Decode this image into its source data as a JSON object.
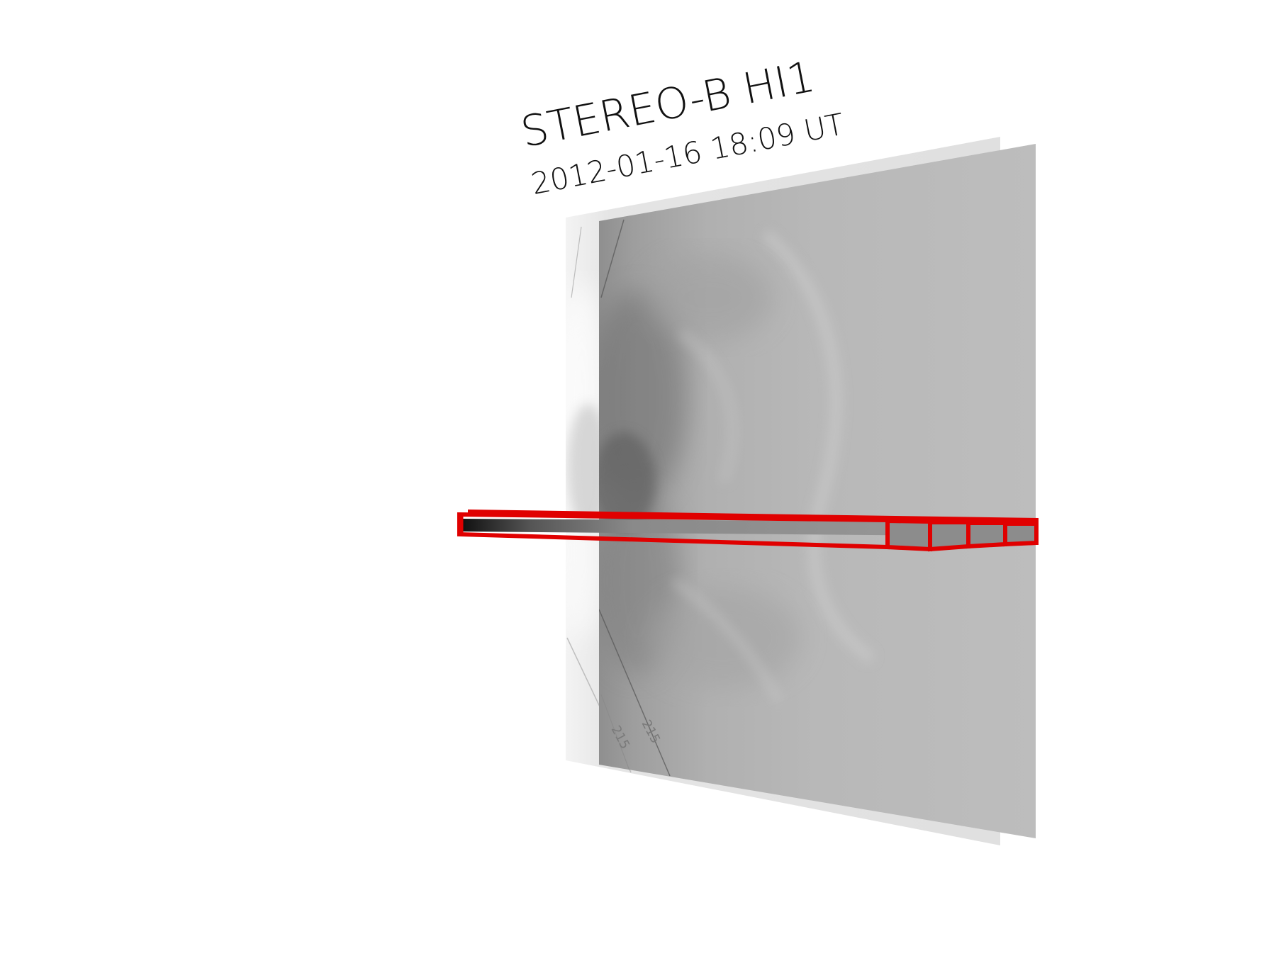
{
  "title": {
    "instrument": "STEREO-B HI1",
    "timestamp": "2012-01-16 18:09 UT"
  },
  "annotations": {
    "contour_label_front": "215",
    "contour_label_back": "215"
  },
  "colors": {
    "slit_outline": "#e00000",
    "image_back": "#d9d9d9",
    "image_front": "#b4b4b4",
    "text": "#111111"
  }
}
